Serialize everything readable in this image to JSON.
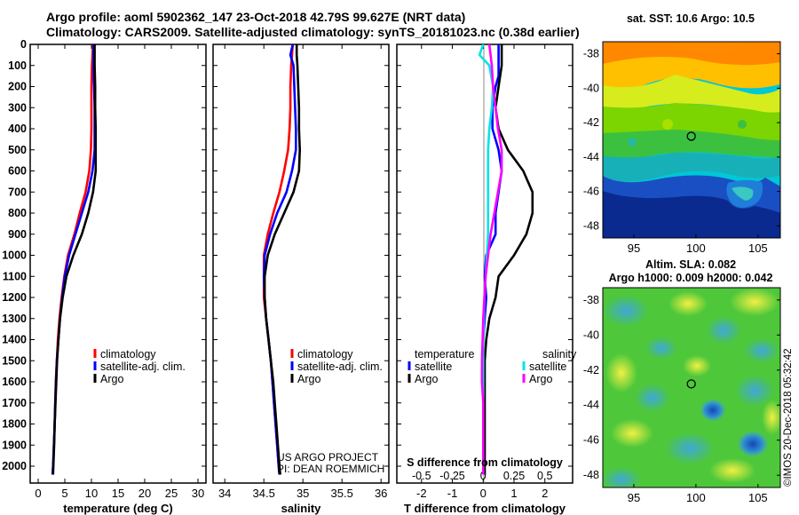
{
  "header": {
    "line1": "Argo profile: aoml 5902362_147 23-Oct-2018 42.79S 99.627E (NRT data)",
    "line2": "Climatology: CARS2009. Satellite-adjusted climatology: synTS_20181023.nc (0.38d earlier)"
  },
  "side_text": "©IMOS 20-Dec-2018 05:32:42",
  "credits": {
    "line1": "US ARGO PROJECT",
    "line2": "PI: DEAN ROEMMICH"
  },
  "colors": {
    "climatology": "#ff0000",
    "satellite": "#0000ff",
    "argo": "#000000",
    "sal_satellite": "#00e5e5",
    "sal_argo": "#ff00ff",
    "float_marker": "#000000"
  },
  "chart_data": [
    {
      "type": "line",
      "id": "temperature",
      "xlabel": "temperature (deg C)",
      "ylabel": "",
      "xlim": [
        -1.5,
        31.5
      ],
      "ylim": [
        2080,
        0
      ],
      "xticks": [
        0,
        5,
        10,
        15,
        20,
        25,
        30
      ],
      "yticks": [
        0,
        100,
        200,
        300,
        400,
        500,
        600,
        700,
        800,
        900,
        1000,
        1100,
        1200,
        1300,
        1400,
        1500,
        1600,
        1700,
        1800,
        1900,
        2000
      ],
      "legend": [
        "climatology",
        "satellite-adj. clim.",
        "Argo"
      ],
      "series": [
        {
          "name": "climatology",
          "color": "red",
          "points": [
            [
              10.3,
              0
            ],
            [
              10.2,
              50
            ],
            [
              10.1,
              100
            ],
            [
              10.0,
              200
            ],
            [
              10.0,
              300
            ],
            [
              10.0,
              400
            ],
            [
              9.9,
              500
            ],
            [
              9.6,
              600
            ],
            [
              8.9,
              700
            ],
            [
              7.8,
              800
            ],
            [
              6.8,
              900
            ],
            [
              5.6,
              1000
            ],
            [
              4.9,
              1100
            ],
            [
              4.4,
              1200
            ],
            [
              4.0,
              1300
            ],
            [
              3.7,
              1400
            ],
            [
              3.5,
              1500
            ],
            [
              3.3,
              1600
            ],
            [
              3.2,
              1700
            ],
            [
              3.1,
              1800
            ],
            [
              2.95,
              1900
            ],
            [
              2.8,
              2000
            ],
            [
              2.7,
              2040
            ]
          ]
        },
        {
          "name": "satellite-adj. clim.",
          "color": "blue",
          "points": [
            [
              10.4,
              0
            ],
            [
              10.4,
              50
            ],
            [
              10.4,
              100
            ],
            [
              10.5,
              200
            ],
            [
              10.6,
              300
            ],
            [
              10.6,
              400
            ],
            [
              10.6,
              500
            ],
            [
              10.2,
              600
            ],
            [
              9.4,
              700
            ],
            [
              8.2,
              800
            ],
            [
              7.0,
              900
            ],
            [
              5.8,
              1000
            ],
            [
              5.0,
              1100
            ],
            [
              4.5,
              1200
            ],
            [
              4.1,
              1300
            ],
            [
              3.8,
              1400
            ],
            [
              3.5,
              1500
            ],
            [
              3.35,
              1600
            ],
            [
              3.2,
              1700
            ],
            [
              3.1,
              1800
            ],
            [
              2.95,
              1900
            ],
            [
              2.8,
              2000
            ],
            [
              2.7,
              2040
            ]
          ]
        },
        {
          "name": "Argo",
          "color": "black",
          "points": [
            [
              10.6,
              0
            ],
            [
              10.6,
              50
            ],
            [
              10.6,
              100
            ],
            [
              10.7,
              200
            ],
            [
              10.7,
              300
            ],
            [
              10.8,
              400
            ],
            [
              10.8,
              500
            ],
            [
              10.8,
              600
            ],
            [
              10.3,
              700
            ],
            [
              9.4,
              800
            ],
            [
              8.2,
              900
            ],
            [
              6.6,
              1000
            ],
            [
              5.3,
              1100
            ],
            [
              4.6,
              1200
            ],
            [
              4.1,
              1300
            ],
            [
              3.8,
              1400
            ],
            [
              3.55,
              1500
            ],
            [
              3.4,
              1600
            ],
            [
              3.25,
              1700
            ],
            [
              3.1,
              1800
            ],
            [
              3.0,
              1900
            ],
            [
              2.85,
              2000
            ],
            [
              2.8,
              2040
            ]
          ]
        }
      ]
    },
    {
      "type": "line",
      "id": "salinity",
      "xlabel": "salinity",
      "ylabel": "",
      "xlim": [
        33.85,
        36.1
      ],
      "ylim": [
        2080,
        0
      ],
      "xticks": [
        34,
        34.5,
        35,
        35.5,
        36
      ],
      "yticks": [],
      "legend": [
        "climatology",
        "satellite-adj. clim.",
        "Argo"
      ],
      "series": [
        {
          "name": "climatology",
          "color": "red",
          "points": [
            [
              34.87,
              0
            ],
            [
              34.86,
              50
            ],
            [
              34.85,
              100
            ],
            [
              34.84,
              200
            ],
            [
              34.84,
              300
            ],
            [
              34.83,
              400
            ],
            [
              34.81,
              500
            ],
            [
              34.76,
              600
            ],
            [
              34.7,
              700
            ],
            [
              34.62,
              800
            ],
            [
              34.55,
              900
            ],
            [
              34.5,
              1000
            ],
            [
              34.5,
              1100
            ],
            [
              34.5,
              1200
            ],
            [
              34.53,
              1300
            ],
            [
              34.56,
              1400
            ],
            [
              34.59,
              1500
            ],
            [
              34.61,
              1600
            ],
            [
              34.63,
              1700
            ],
            [
              34.65,
              1800
            ],
            [
              34.67,
              1900
            ],
            [
              34.69,
              2000
            ],
            [
              34.7,
              2040
            ]
          ]
        },
        {
          "name": "satellite-adj. clim.",
          "color": "blue",
          "points": [
            [
              34.87,
              0
            ],
            [
              34.84,
              50
            ],
            [
              34.88,
              100
            ],
            [
              34.89,
              200
            ],
            [
              34.9,
              300
            ],
            [
              34.91,
              400
            ],
            [
              34.91,
              500
            ],
            [
              34.86,
              600
            ],
            [
              34.79,
              700
            ],
            [
              34.67,
              800
            ],
            [
              34.58,
              900
            ],
            [
              34.51,
              1000
            ],
            [
              34.5,
              1100
            ],
            [
              34.51,
              1200
            ],
            [
              34.53,
              1300
            ],
            [
              34.56,
              1400
            ],
            [
              34.59,
              1500
            ],
            [
              34.61,
              1600
            ],
            [
              34.63,
              1700
            ],
            [
              34.65,
              1800
            ],
            [
              34.67,
              1900
            ],
            [
              34.69,
              2000
            ],
            [
              34.7,
              2040
            ]
          ]
        },
        {
          "name": "Argo",
          "color": "black",
          "points": [
            [
              34.92,
              0
            ],
            [
              34.92,
              50
            ],
            [
              34.93,
              100
            ],
            [
              34.94,
              200
            ],
            [
              34.95,
              300
            ],
            [
              34.95,
              400
            ],
            [
              34.96,
              500
            ],
            [
              34.95,
              600
            ],
            [
              34.88,
              700
            ],
            [
              34.76,
              800
            ],
            [
              34.64,
              900
            ],
            [
              34.55,
              1000
            ],
            [
              34.51,
              1100
            ],
            [
              34.51,
              1200
            ],
            [
              34.53,
              1300
            ],
            [
              34.56,
              1400
            ],
            [
              34.59,
              1500
            ],
            [
              34.62,
              1600
            ],
            [
              34.64,
              1700
            ],
            [
              34.66,
              1800
            ],
            [
              34.68,
              1900
            ],
            [
              34.7,
              2000
            ],
            [
              34.71,
              2040
            ]
          ]
        }
      ]
    },
    {
      "type": "line",
      "id": "differences",
      "xlabel": "T difference from climatology",
      "x2label": "S difference from climatology",
      "ylabel": "",
      "xlim": [
        -2.8,
        2.9
      ],
      "ylim": [
        2080,
        0
      ],
      "xticks": [
        -2,
        -1,
        0,
        1,
        2
      ],
      "x2lim": [
        -0.7,
        0.725
      ],
      "x2ticks": [
        -0.5,
        -0.25,
        0,
        0.25,
        0.5
      ],
      "yticks": [],
      "legend_temperature": [
        "satellite",
        "Argo"
      ],
      "legend_salinity": [
        "satellite",
        "Argo"
      ],
      "legend_headers": [
        "temperature",
        "salinity"
      ],
      "series": [
        {
          "name": "temperature satellite",
          "axis": "T",
          "color": "blue",
          "points": [
            [
              0.5,
              0
            ],
            [
              0.5,
              50
            ],
            [
              0.5,
              100
            ],
            [
              0.5,
              150
            ],
            [
              0.4,
              200
            ],
            [
              0.3,
              300
            ],
            [
              0.3,
              400
            ],
            [
              0.5,
              500
            ],
            [
              0.6,
              600
            ],
            [
              0.5,
              700
            ],
            [
              0.4,
              800
            ],
            [
              0.4,
              900
            ],
            [
              0.1,
              1000
            ],
            [
              0.05,
              1100
            ],
            [
              0.1,
              1200
            ],
            [
              0.0,
              1400
            ],
            [
              0.0,
              1600
            ],
            [
              0.0,
              1800
            ],
            [
              0.0,
              2040
            ]
          ]
        },
        {
          "name": "temperature Argo",
          "axis": "T",
          "color": "black",
          "points": [
            [
              0.6,
              0
            ],
            [
              0.6,
              100
            ],
            [
              0.5,
              200
            ],
            [
              0.4,
              300
            ],
            [
              0.5,
              400
            ],
            [
              0.8,
              500
            ],
            [
              1.3,
              600
            ],
            [
              1.6,
              700
            ],
            [
              1.6,
              800
            ],
            [
              1.4,
              900
            ],
            [
              1.0,
              1000
            ],
            [
              0.5,
              1100
            ],
            [
              0.4,
              1200
            ],
            [
              0.2,
              1300
            ],
            [
              0.1,
              1400
            ],
            [
              0.05,
              1500
            ],
            [
              0.05,
              1600
            ],
            [
              0.05,
              1700
            ],
            [
              0.05,
              1800
            ],
            [
              0.05,
              2040
            ]
          ]
        },
        {
          "name": "salinity satellite",
          "axis": "S",
          "color": "cyan",
          "points": [
            [
              0.0,
              0
            ],
            [
              -0.03,
              50
            ],
            [
              0.05,
              100
            ],
            [
              0.08,
              200
            ],
            [
              0.07,
              300
            ],
            [
              0.05,
              400
            ],
            [
              0.04,
              500
            ],
            [
              0.04,
              600
            ],
            [
              0.04,
              700
            ],
            [
              0.04,
              800
            ],
            [
              0.04,
              900
            ],
            [
              0.03,
              1000
            ],
            [
              0.02,
              1100
            ],
            [
              0.01,
              1200
            ],
            [
              0.0,
              1400
            ],
            [
              0.0,
              1600
            ],
            [
              0.0,
              1800
            ],
            [
              0.0,
              2040
            ]
          ]
        },
        {
          "name": "salinity Argo",
          "axis": "S",
          "color": "magenta",
          "points": [
            [
              0.05,
              0
            ],
            [
              0.07,
              100
            ],
            [
              0.08,
              200
            ],
            [
              0.1,
              300
            ],
            [
              0.12,
              400
            ],
            [
              0.15,
              500
            ],
            [
              0.15,
              600
            ],
            [
              0.12,
              700
            ],
            [
              0.09,
              800
            ],
            [
              0.06,
              900
            ],
            [
              0.04,
              1000
            ],
            [
              0.02,
              1100
            ],
            [
              0.0,
              1300
            ],
            [
              -0.01,
              1500
            ],
            [
              -0.01,
              1600
            ],
            [
              0.0,
              1700
            ],
            [
              0.0,
              2040
            ]
          ]
        }
      ]
    },
    {
      "type": "heatmap",
      "id": "sst_map",
      "title": "sat. SST: 10.6 Argo: 10.5",
      "xlim": [
        92.5,
        106.8
      ],
      "ylim": [
        -48.7,
        -37.3
      ],
      "xticks": [
        95,
        100,
        105
      ],
      "yticks": [
        -38,
        -40,
        -42,
        -44,
        -46,
        -48
      ],
      "float_position": [
        99.627,
        -42.79
      ]
    },
    {
      "type": "heatmap",
      "id": "sla_map",
      "title_line1": "Altim. SLA: 0.082",
      "title_line2": "Argo h1000: 0.009 h2000: 0.042",
      "xlim": [
        92.5,
        106.8
      ],
      "ylim": [
        -48.7,
        -37.3
      ],
      "xticks": [
        95,
        100,
        105
      ],
      "yticks": [
        -38,
        -40,
        -42,
        -44,
        -46,
        -48
      ],
      "float_position": [
        99.627,
        -42.79
      ]
    }
  ]
}
